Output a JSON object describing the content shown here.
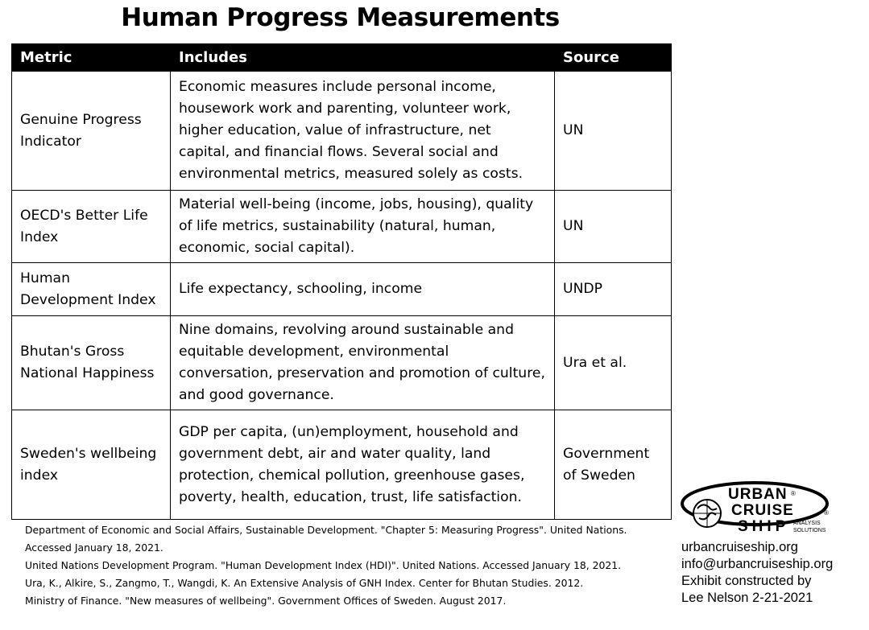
{
  "title": "Human Progress Measurements",
  "table": {
    "headers": [
      "Metric",
      "Includes",
      "Source"
    ],
    "rows": [
      {
        "metric": "Genuine Progress Indicator",
        "includes": "Economic measures include personal income, housework work and parenting, volunteer work, higher education, value of infrastructure, net capital, and financial flows. Several social and environmental metrics, measured solely as costs.",
        "source": "UN"
      },
      {
        "metric": "OECD's Better Life Index",
        "includes": "Material well-being (income, jobs, housing), quality of life metrics, sustainability (natural, human, economic, social capital).",
        "source": "UN"
      },
      {
        "metric": "Human Development Index",
        "includes": "Life expectancy, schooling, income",
        "source": "UNDP"
      },
      {
        "metric": "Bhutan's Gross National Happiness",
        "includes": "Nine domains, revolving around sustainable and equitable development, environmental conversation, preservation and promotion of culture, and good governance.",
        "source": "Ura et al."
      },
      {
        "metric": "Sweden's wellbeing index",
        "includes": "GDP per capita, (un)employment, household and government debt, air and water quality, land protection, chemical pollution, greenhouse gases, poverty, health, education, trust, life satisfaction.",
        "source": "Government of Sweden"
      }
    ]
  },
  "references": [
    "Department of Economic and Social Affairs, Sustainable Development. \"Chapter 5: Measuring Progress\". United Nations. Accessed January 18, 2021.",
    "United Nations Development Program. \"Human Development Index (HDI)\". United Nations. Accessed January 18, 2021.",
    "Ura, K., Alkire, S., Zangmo, T., Wangdi, K. An Extensive Analysis of GNH Index. Center for Bhutan Studies. 2012.",
    "Ministry of Finance. \"New measures of wellbeing\". Government Offices of Sweden. August 2017."
  ],
  "logo": {
    "line1": "URBAN",
    "line2": "CRUISE",
    "line3": "SHIP",
    "tagline1": "ANALYSIS",
    "tagline2": "SOLUTIONS",
    "registered": "®"
  },
  "contact": {
    "website": "urbancruiseship.org",
    "email": "info@urbancruiseship.org",
    "credit_line1": "Exhibit constructed by",
    "credit_line2": "Lee Nelson 2-21-2021"
  }
}
